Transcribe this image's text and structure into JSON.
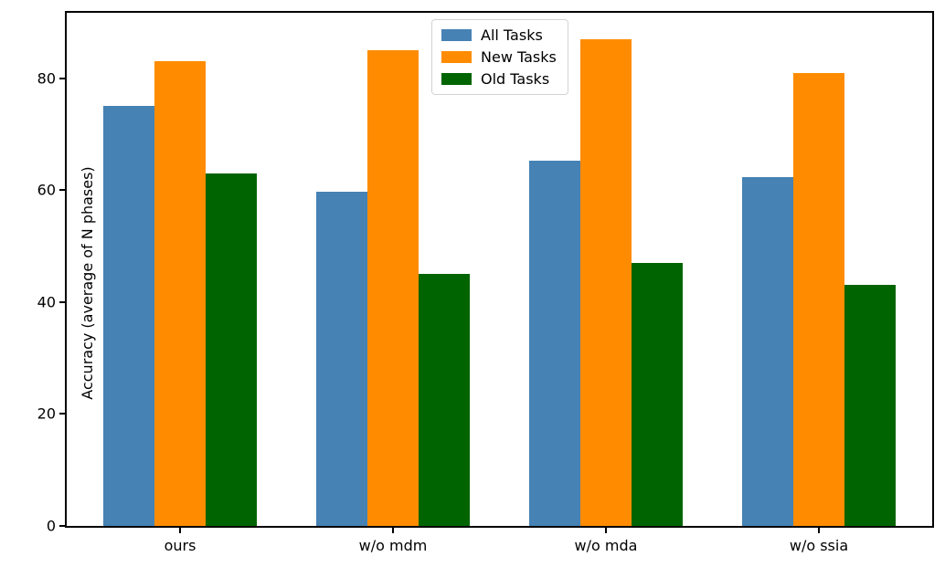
{
  "chart_data": {
    "type": "bar",
    "title": "",
    "xlabel": "",
    "ylabel": "Accuracy (average of N phases)",
    "categories": [
      "ours",
      "w/o mdm",
      "w/o mda",
      "w/o ssia"
    ],
    "series": [
      {
        "name": "All Tasks",
        "color": "#4682B4",
        "values": [
          75,
          59.7,
          65.3,
          62.4
        ]
      },
      {
        "name": "New Tasks",
        "color": "#FF8C00",
        "values": [
          83,
          85,
          87,
          81
        ]
      },
      {
        "name": "Old Tasks",
        "color": "#006400",
        "values": [
          63,
          45,
          47,
          43
        ]
      }
    ],
    "yticks": [
      0,
      20,
      40,
      60,
      80
    ],
    "ylim": [
      0,
      91.7
    ],
    "grid": false,
    "legend_position": "upper center",
    "axis_color": "#000000",
    "background": "#ffffff"
  }
}
